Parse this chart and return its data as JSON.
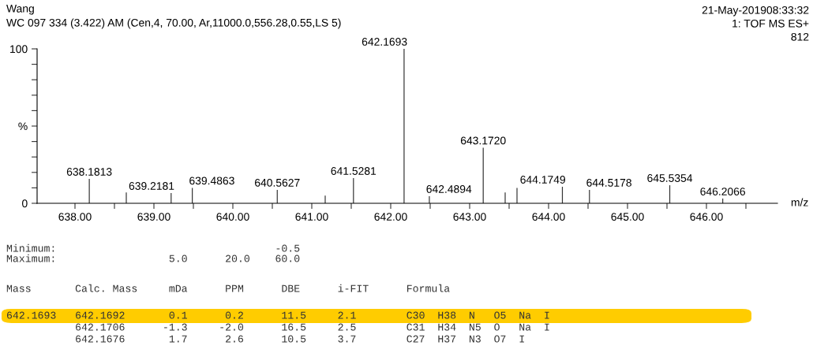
{
  "chart_data": {
    "type": "bar",
    "title": "Wang",
    "subtitle": "WC 097 334 (3.422) AM (Cen,4, 70.00, Ar,11000.0,556.28,0.55,LS 5)",
    "xlabel": "m/z",
    "x": [
      638.1813,
      638.65,
      639.2181,
      639.4863,
      640.5627,
      641.17,
      641.5281,
      642.1693,
      642.4894,
      643.172,
      643.45,
      643.6,
      644.1749,
      644.5178,
      645.5354,
      646.2066
    ],
    "values": [
      15.8,
      7,
      6.6,
      10,
      8.7,
      5,
      16.3,
      100,
      4.6,
      36,
      7,
      10,
      10.7,
      8.7,
      11.7,
      3
    ],
    "color": "#333333",
    "xlim": [
      637.52,
      646.9
    ],
    "xticks": [
      {
        "value": 638,
        "label": "638.00"
      },
      {
        "value": 638.5,
        "label": null
      },
      {
        "value": 639,
        "label": "639.00"
      },
      {
        "value": 639.5,
        "label": null
      },
      {
        "value": 640,
        "label": "640.00"
      },
      {
        "value": 640.5,
        "label": null
      },
      {
        "value": 641,
        "label": "641.00"
      },
      {
        "value": 641.5,
        "label": null
      },
      {
        "value": 642,
        "label": "642.00"
      },
      {
        "value": 642.5,
        "label": null
      },
      {
        "value": 643,
        "label": "643.00"
      },
      {
        "value": 643.5,
        "label": null
      },
      {
        "value": 644,
        "label": "644.00"
      },
      {
        "value": 644.5,
        "label": null
      },
      {
        "value": 645,
        "label": "645.00"
      },
      {
        "value": 645.5,
        "label": null
      },
      {
        "value": 646,
        "label": "646.00"
      },
      {
        "value": 646.5,
        "label": null
      }
    ],
    "ylim": [
      0,
      100
    ],
    "yticks": [
      0,
      {
        "value": 10,
        "label": null
      },
      {
        "value": 20,
        "label": null
      },
      {
        "value": 30,
        "label": null
      },
      {
        "value": 40,
        "label": null
      },
      {
        "value": 50,
        "label": "%"
      },
      {
        "value": 60,
        "label": null
      },
      {
        "value": 70,
        "label": null
      },
      {
        "value": 80,
        "label": null
      },
      {
        "value": 90,
        "label": null
      },
      100
    ],
    "annotations": [
      {
        "text": "638.1813",
        "x": 638.1813,
        "y": 15.8
      },
      {
        "text": "639.2181",
        "x": 639.2181,
        "y": 6.6
      },
      {
        "text": "639.4863",
        "x": 639.4863,
        "y": 10
      },
      {
        "text": "640.5627",
        "x": 640.5627,
        "y": 8.7
      },
      {
        "text": "641.5281",
        "x": 641.5281,
        "y": 16.3
      },
      {
        "text": "642.1693",
        "x": 642.1693,
        "y": 100
      },
      {
        "text": "642.4894",
        "x": 642.4894,
        "y": 4.6
      },
      {
        "text": "643.1720",
        "x": 643.172,
        "y": 36
      },
      {
        "text": "644.1749",
        "x": 644.1749,
        "y": 10.7
      },
      {
        "text": "644.5178",
        "x": 644.5178,
        "y": 8.7
      },
      {
        "text": "645.5354",
        "x": 645.5354,
        "y": 11.7
      },
      {
        "text": "646.2066",
        "x": 646.2066,
        "y": 3
      },
      "21-May-201908:33:32",
      "1: TOF MS ES+",
      "812",
      "Minimum:                                   -0.5",
      "Maximum:                  5.0      20.0    60.0",
      "Mass       Calc. Mass     mDa      PPM      DBE      i-FIT      Formula",
      "642.1693   642.1692       0.1      0.2      11.5     2.1        C30  H38  N   O5  Na  I",
      "           642.1706      -1.3     -2.0      16.5     2.5        C31  H34  N5  O   Na  I",
      "           642.1676       1.7      2.6      10.5     3.7        C27  H37  N3  O7  I"
    ]
  }
}
